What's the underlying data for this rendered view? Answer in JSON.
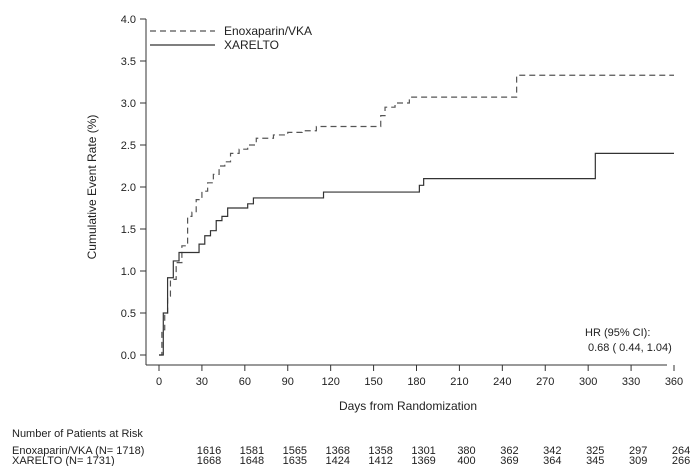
{
  "chart_data": {
    "type": "line",
    "step": true,
    "xlabel": "Days from Randomization",
    "ylabel": "Cumulative Event Rate (%)",
    "xlim": [
      0,
      360
    ],
    "ylim": [
      0,
      4.0
    ],
    "xticks": [
      "0",
      "30",
      "60",
      "90",
      "120",
      "150",
      "180",
      "210",
      "240",
      "270",
      "300",
      "330",
      "360"
    ],
    "yticks": [
      "0.0",
      "0.5",
      "1.0",
      "1.5",
      "2.0",
      "2.5",
      "3.0",
      "3.5",
      "4.0"
    ],
    "legend_position": "top-left",
    "series": [
      {
        "name": "Enoxaparin/VKA",
        "style": "dashed",
        "color": "#555555",
        "points": [
          [
            0,
            0
          ],
          [
            2,
            0.3
          ],
          [
            4,
            0.5
          ],
          [
            6,
            0.7
          ],
          [
            8,
            0.9
          ],
          [
            12,
            1.1
          ],
          [
            16,
            1.3
          ],
          [
            20,
            1.65
          ],
          [
            23,
            1.7
          ],
          [
            26,
            1.85
          ],
          [
            30,
            1.95
          ],
          [
            34,
            2.05
          ],
          [
            38,
            2.15
          ],
          [
            42,
            2.25
          ],
          [
            46,
            2.3
          ],
          [
            50,
            2.4
          ],
          [
            56,
            2.45
          ],
          [
            62,
            2.5
          ],
          [
            68,
            2.58
          ],
          [
            80,
            2.62
          ],
          [
            90,
            2.65
          ],
          [
            100,
            2.67
          ],
          [
            110,
            2.72
          ],
          [
            150,
            2.72
          ],
          [
            155,
            2.85
          ],
          [
            158,
            2.95
          ],
          [
            165,
            3.0
          ],
          [
            175,
            3.07
          ],
          [
            250,
            3.07
          ],
          [
            250,
            3.33
          ],
          [
            360,
            3.33
          ]
        ]
      },
      {
        "name": "XARELTO",
        "style": "solid",
        "color": "#333333",
        "points": [
          [
            0,
            0
          ],
          [
            3,
            0.5
          ],
          [
            6,
            0.92
          ],
          [
            10,
            1.12
          ],
          [
            14,
            1.22
          ],
          [
            24,
            1.22
          ],
          [
            28,
            1.32
          ],
          [
            32,
            1.42
          ],
          [
            36,
            1.48
          ],
          [
            40,
            1.6
          ],
          [
            44,
            1.65
          ],
          [
            48,
            1.75
          ],
          [
            58,
            1.75
          ],
          [
            62,
            1.8
          ],
          [
            66,
            1.87
          ],
          [
            115,
            1.87
          ],
          [
            115,
            1.94
          ],
          [
            180,
            1.94
          ],
          [
            182,
            2.02
          ],
          [
            185,
            2.1
          ],
          [
            305,
            2.1
          ],
          [
            305,
            2.4
          ],
          [
            360,
            2.4
          ]
        ]
      }
    ],
    "annotation": {
      "line1": "HR (95% CI):",
      "line2": "0.68 ( 0.44,  1.04)"
    },
    "risk_table": {
      "title": "Number of Patients at Risk",
      "rows": [
        {
          "label": "Enoxaparin/VKA (N= 1718)",
          "values": [
            "1616",
            "1581",
            "1565",
            "1368",
            "1358",
            "1301",
            "380",
            "362",
            "342",
            "325",
            "297",
            "264"
          ]
        },
        {
          "label": "XARELTO (N= 1731)",
          "values": [
            "1668",
            "1648",
            "1635",
            "1424",
            "1412",
            "1369",
            "400",
            "369",
            "364",
            "345",
            "309",
            "266"
          ]
        }
      ]
    }
  }
}
